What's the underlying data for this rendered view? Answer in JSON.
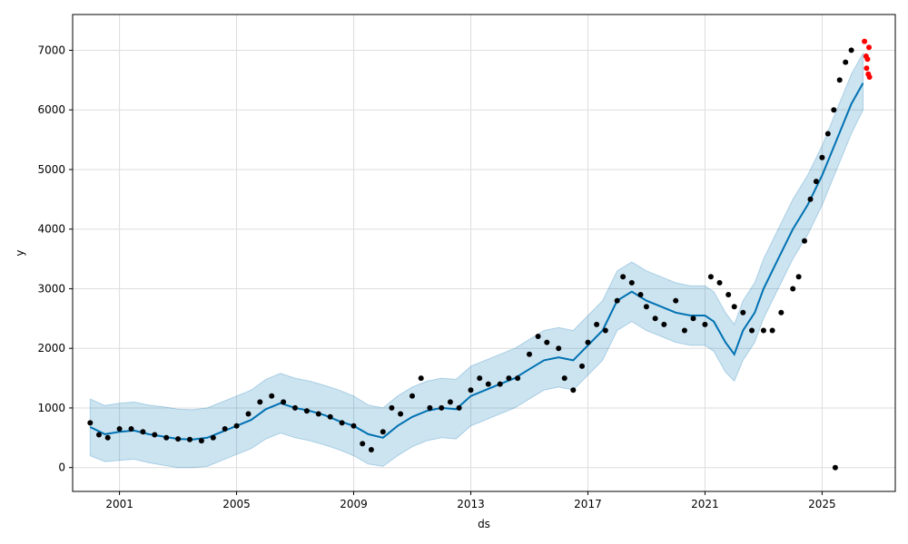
{
  "chart_data": {
    "type": "scatter",
    "xlabel": "ds",
    "ylabel": "y",
    "xlim": [
      1999.4,
      2027.5
    ],
    "ylim": [
      -400,
      7600
    ],
    "grid": true,
    "x_ticks": [
      2001,
      2005,
      2009,
      2013,
      2017,
      2021,
      2025
    ],
    "x_tick_labels": [
      "2001",
      "2005",
      "2009",
      "2013",
      "2017",
      "2021",
      "2025"
    ],
    "y_ticks": [
      0,
      1000,
      2000,
      3000,
      4000,
      5000,
      6000,
      7000
    ],
    "y_tick_labels": [
      "0",
      "1000",
      "2000",
      "3000",
      "4000",
      "5000",
      "6000",
      "7000"
    ],
    "colors": {
      "observed": "#000000",
      "forecast": "#0072B2",
      "interval_fill": "#0072B2",
      "recent_points": "#ff0000",
      "grid": "#dddddd"
    },
    "forecast": {
      "x": [
        2000.0,
        2000.5,
        2001.0,
        2001.5,
        2002.0,
        2002.5,
        2003.0,
        2003.5,
        2004.0,
        2004.5,
        2005.0,
        2005.5,
        2006.0,
        2006.5,
        2007.0,
        2007.5,
        2008.0,
        2008.5,
        2009.0,
        2009.5,
        2010.0,
        2010.5,
        2011.0,
        2011.5,
        2012.0,
        2012.5,
        2013.0,
        2013.5,
        2014.0,
        2014.5,
        2015.0,
        2015.5,
        2016.0,
        2016.5,
        2017.0,
        2017.5,
        2018.0,
        2018.5,
        2019.0,
        2019.5,
        2020.0,
        2020.5,
        2021.0,
        2021.3,
        2021.7,
        2022.0,
        2022.3,
        2022.7,
        2023.0,
        2023.5,
        2024.0,
        2024.5,
        2025.0,
        2025.5,
        2026.0,
        2026.4
      ],
      "yhat": [
        680,
        560,
        600,
        620,
        560,
        520,
        480,
        470,
        500,
        600,
        700,
        800,
        980,
        1080,
        1000,
        950,
        880,
        780,
        700,
        560,
        500,
        700,
        850,
        950,
        1000,
        980,
        1200,
        1300,
        1400,
        1500,
        1650,
        1800,
        1850,
        1800,
        2050,
        2300,
        2800,
        2950,
        2800,
        2700,
        2600,
        2550,
        2550,
        2450,
        2100,
        1900,
        2300,
        2600,
        3000,
        3500,
        4000,
        4400,
        4900,
        5500,
        6100,
        6450
      ],
      "upper": [
        1150,
        1040,
        1080,
        1100,
        1050,
        1020,
        980,
        970,
        1000,
        1100,
        1200,
        1300,
        1480,
        1580,
        1500,
        1450,
        1380,
        1300,
        1200,
        1050,
        1000,
        1200,
        1350,
        1450,
        1500,
        1480,
        1700,
        1800,
        1900,
        2000,
        2150,
        2300,
        2350,
        2300,
        2550,
        2800,
        3300,
        3450,
        3300,
        3200,
        3100,
        3050,
        3050,
        2950,
        2600,
        2400,
        2800,
        3100,
        3500,
        4000,
        4500,
        4900,
        5400,
        6000,
        6600,
        6950
      ],
      "lower": [
        200,
        100,
        120,
        140,
        80,
        40,
        0,
        0,
        20,
        120,
        220,
        320,
        480,
        580,
        500,
        450,
        380,
        300,
        200,
        60,
        20,
        200,
        350,
        450,
        500,
        480,
        700,
        800,
        900,
        1000,
        1150,
        1300,
        1350,
        1300,
        1550,
        1800,
        2300,
        2450,
        2300,
        2200,
        2100,
        2050,
        2050,
        1950,
        1600,
        1450,
        1800,
        2100,
        2500,
        3000,
        3500,
        3900,
        4400,
        5000,
        5600,
        6000
      ]
    },
    "observed": {
      "x": [
        2000.0,
        2000.3,
        2000.6,
        2001.0,
        2001.4,
        2001.8,
        2002.2,
        2002.6,
        2003.0,
        2003.4,
        2003.8,
        2004.2,
        2004.6,
        2005.0,
        2005.4,
        2005.8,
        2006.2,
        2006.6,
        2007.0,
        2007.4,
        2007.8,
        2008.2,
        2008.6,
        2009.0,
        2009.3,
        2009.6,
        2010.0,
        2010.3,
        2010.6,
        2011.0,
        2011.3,
        2011.6,
        2012.0,
        2012.3,
        2012.6,
        2013.0,
        2013.3,
        2013.6,
        2014.0,
        2014.3,
        2014.6,
        2015.0,
        2015.3,
        2015.6,
        2016.0,
        2016.2,
        2016.5,
        2016.8,
        2017.0,
        2017.3,
        2017.6,
        2018.0,
        2018.2,
        2018.5,
        2018.8,
        2019.0,
        2019.3,
        2019.6,
        2020.0,
        2020.3,
        2020.6,
        2021.0,
        2021.2,
        2021.5,
        2021.8,
        2022.0,
        2022.3,
        2022.6,
        2023.0,
        2023.3,
        2023.6,
        2024.0,
        2024.2,
        2024.4,
        2024.6,
        2024.8,
        2025.0,
        2025.2,
        2025.4,
        2025.6,
        2025.8,
        2026.0
      ],
      "y": [
        750,
        550,
        500,
        650,
        650,
        600,
        550,
        500,
        480,
        470,
        450,
        500,
        650,
        700,
        900,
        1100,
        1200,
        1100,
        1000,
        950,
        900,
        850,
        750,
        700,
        400,
        300,
        600,
        1000,
        900,
        1200,
        1500,
        1000,
        1000,
        1100,
        1000,
        1300,
        1500,
        1400,
        1400,
        1500,
        1500,
        1900,
        2200,
        2100,
        2000,
        1500,
        1300,
        1700,
        2100,
        2400,
        2300,
        2800,
        3200,
        3100,
        2900,
        2700,
        2500,
        2400,
        2800,
        2300,
        2500,
        2400,
        3200,
        3100,
        2900,
        2700,
        2600,
        2300,
        2300,
        2300,
        2600,
        3000,
        3200,
        3800,
        4500,
        4800,
        5200,
        5600,
        6000,
        6500,
        6800,
        7000
      ]
    },
    "outlier": {
      "x": 2025.45,
      "y": 0
    },
    "recent": {
      "x": [
        2026.45,
        2026.5,
        2026.52,
        2026.55,
        2026.58,
        2026.6,
        2026.62
      ],
      "y": [
        7150,
        6900,
        6700,
        6850,
        6600,
        7050,
        6550
      ]
    }
  }
}
